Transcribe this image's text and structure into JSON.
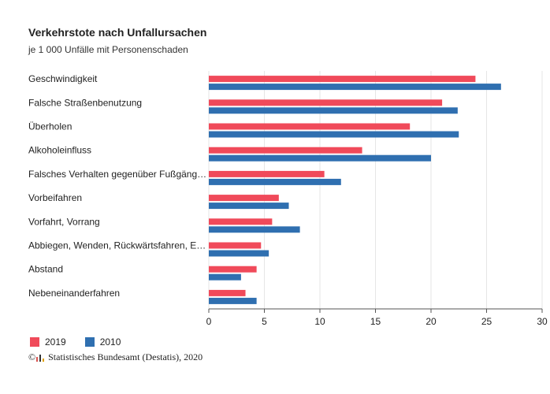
{
  "chart_data": {
    "type": "bar",
    "orientation": "horizontal",
    "title": "Verkehrstote nach Unfallursachen",
    "subtitle": "je 1 000 Unfälle mit Personenschaden",
    "categories": [
      "Geschwindigkeit",
      "Falsche Straßenbenutzung",
      "Überholen",
      "Alkoholeinfluss",
      "Falsches Verhalten gegenüber Fußgäng…",
      "Vorbeifahren",
      "Vorfahrt, Vorrang",
      "Abbiegen, Wenden, Rückwärtsfahren, E…",
      "Abstand",
      "Nebeneinanderfahren"
    ],
    "series": [
      {
        "name": "2019",
        "color": "#f04a5a",
        "values": [
          24.0,
          21.0,
          18.1,
          13.8,
          10.4,
          6.3,
          5.7,
          4.7,
          4.3,
          3.3
        ]
      },
      {
        "name": "2010",
        "color": "#2f6fb0",
        "values": [
          26.3,
          22.4,
          22.5,
          20.0,
          11.9,
          7.2,
          8.2,
          5.4,
          2.9,
          4.3
        ]
      }
    ],
    "xlim": [
      0,
      30
    ],
    "xticks": [
      "0",
      "5",
      "10",
      "15",
      "20",
      "25",
      "30"
    ],
    "grid": true,
    "legend_position": "bottom-left"
  },
  "footer": {
    "text": "Statistisches Bundesamt (Destatis), 2020",
    "copyright": "©"
  }
}
